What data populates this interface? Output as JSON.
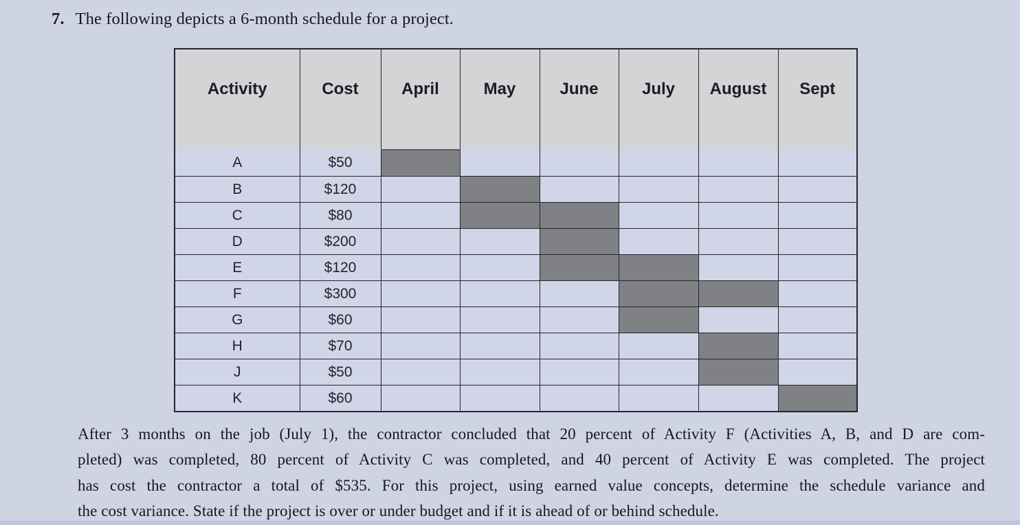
{
  "problem": {
    "number": "7.",
    "title": "The following depicts a 6-month schedule for a project.",
    "paragraph_lines": [
      "After 3 months on the job (July 1), the contractor concluded that 20 percent of Activity F (Activities A, B, and D are com-",
      "pleted) was completed, 80 percent of Activity C was completed, and 40 percent of Activity E was completed. The project",
      "has cost the contractor a total of $535. For this project, using earned value concepts, determine the schedule variance and",
      "the cost variance. State if the project is over or under budget and if it is ahead of or behind schedule."
    ]
  },
  "chart_data": {
    "type": "table",
    "subtype": "gantt-schedule",
    "title": "6-month schedule for a project",
    "columns": [
      "Activity",
      "Cost",
      "April",
      "May",
      "June",
      "July",
      "August",
      "Sept"
    ],
    "months": [
      "April",
      "May",
      "June",
      "July",
      "August",
      "Sept"
    ],
    "rows": [
      {
        "activity": "A",
        "cost": "$50",
        "months": [
          "April"
        ]
      },
      {
        "activity": "B",
        "cost": "$120",
        "months": [
          "May"
        ]
      },
      {
        "activity": "C",
        "cost": "$80",
        "months": [
          "May",
          "June"
        ]
      },
      {
        "activity": "D",
        "cost": "$200",
        "months": [
          "June"
        ]
      },
      {
        "activity": "E",
        "cost": "$120",
        "months": [
          "June",
          "July"
        ]
      },
      {
        "activity": "F",
        "cost": "$300",
        "months": [
          "July",
          "August"
        ]
      },
      {
        "activity": "G",
        "cost": "$60",
        "months": [
          "July"
        ]
      },
      {
        "activity": "H",
        "cost": "$70",
        "months": [
          "August"
        ]
      },
      {
        "activity": "J",
        "cost": "$50",
        "months": [
          "August"
        ]
      },
      {
        "activity": "K",
        "cost": "$60",
        "months": [
          "Sept"
        ]
      }
    ],
    "bar_color": "#7f8184"
  },
  "colors": {
    "page_background": "#cfd4e5",
    "cell_background": "#d1d5e8",
    "header_background": "#d3d4d6",
    "bar": "#7f8184",
    "border": "#25252d",
    "bottom_edge": "#c0c7dc"
  }
}
